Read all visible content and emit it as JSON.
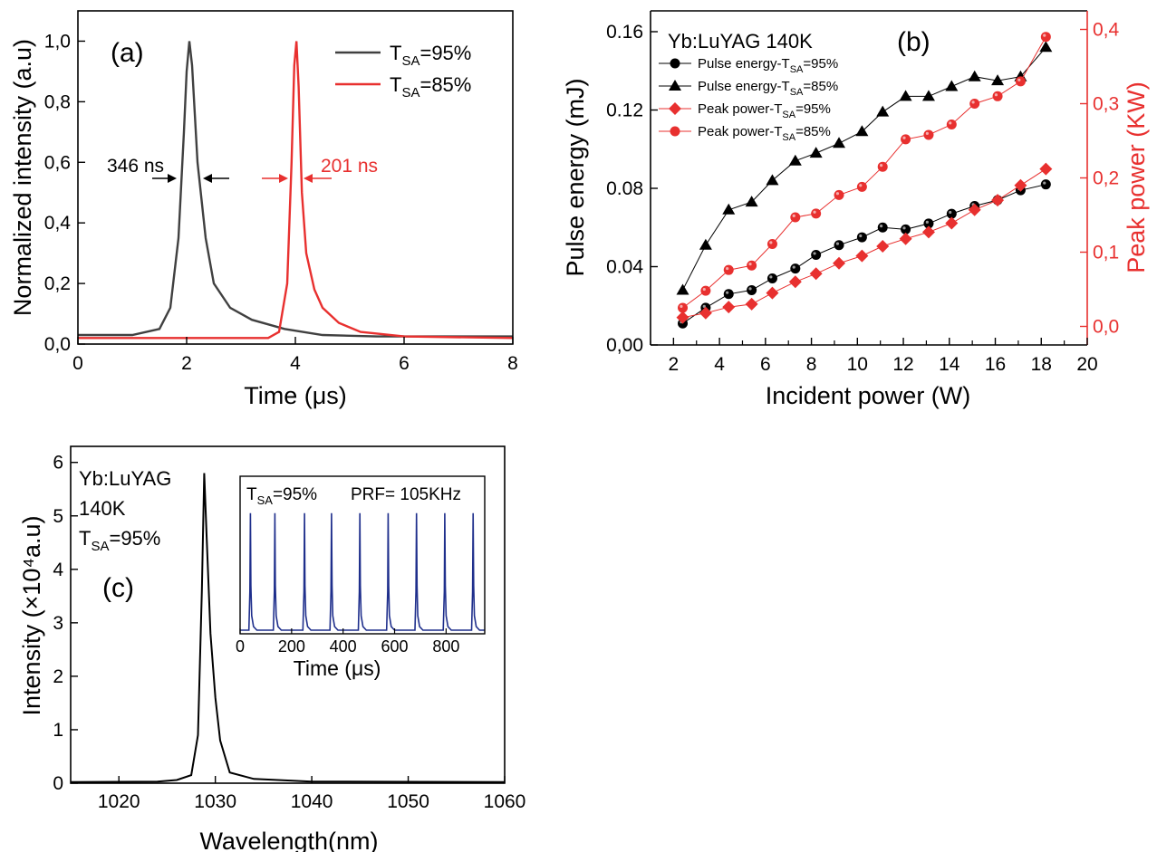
{
  "colors": {
    "black_series": "#000000",
    "gray_series": "#404040",
    "red_series": "#e8302f",
    "blue_series": "#1f2f8c"
  },
  "chart_data": [
    {
      "panel": "(a)",
      "type": "line",
      "xlabel": "Time (μs)",
      "ylabel": "Normalized intensity (a.u)",
      "xlim": [
        0,
        8
      ],
      "ylim": [
        0,
        1.1
      ],
      "x_ticks": [
        "0",
        "2",
        "4",
        "6",
        "8"
      ],
      "y_ticks": [
        "0,0",
        "0,2",
        "0,4",
        "0,6",
        "0,8",
        "1,0"
      ],
      "legend_position": "top-right",
      "series": [
        {
          "name": "T_SA=95%",
          "name_main": "T",
          "name_sub": "SA",
          "name_rest": "=95%",
          "color": "#404040",
          "x": [
            0,
            1.0,
            1.5,
            1.7,
            1.85,
            1.95,
            2.0,
            2.05,
            2.1,
            2.2,
            2.35,
            2.5,
            2.8,
            3.2,
            3.8,
            4.5,
            5.5,
            8.0
          ],
          "y": [
            0.03,
            0.03,
            0.05,
            0.12,
            0.35,
            0.7,
            0.9,
            1.0,
            0.92,
            0.6,
            0.35,
            0.2,
            0.12,
            0.08,
            0.05,
            0.03,
            0.025,
            0.025
          ]
        },
        {
          "name": "T_SA=85%",
          "name_main": "T",
          "name_sub": "SA",
          "name_rest": "=85%",
          "color": "#e8302f",
          "x": [
            0,
            3.5,
            3.7,
            3.85,
            3.93,
            3.98,
            4.02,
            4.06,
            4.12,
            4.2,
            4.35,
            4.5,
            4.8,
            5.2,
            6.0,
            8.0
          ],
          "y": [
            0.02,
            0.02,
            0.04,
            0.2,
            0.6,
            0.92,
            1.0,
            0.85,
            0.5,
            0.3,
            0.18,
            0.12,
            0.07,
            0.04,
            0.025,
            0.02
          ]
        }
      ],
      "annotations": [
        {
          "text": "346 ns",
          "color": "#000000"
        },
        {
          "text": "201 ns",
          "color": "#e8302f"
        }
      ]
    },
    {
      "panel": "(b)",
      "type": "line",
      "xlabel": "Incident power (W)",
      "ylabel": "Pulse energy (mJ)",
      "ylabel_right": "Peak power (KW)",
      "title": "Yb:LuYAG   140K",
      "xlim": [
        1,
        20
      ],
      "ylim": [
        0,
        0.16
      ],
      "ylim_right": [
        -0.025,
        0.425
      ],
      "x_ticks": [
        "2",
        "4",
        "6",
        "8",
        "10",
        "12",
        "14",
        "16",
        "18",
        "20"
      ],
      "y_ticks": [
        "0,00",
        "0.04",
        "0.08",
        "0.12",
        "0.16"
      ],
      "y_ticks_right": [
        "0,0",
        "0,1",
        "0,2",
        "0,3",
        "0,4"
      ],
      "legend_position": "top-left",
      "x": [
        2.4,
        3.4,
        4.4,
        5.4,
        6.3,
        7.3,
        8.2,
        9.2,
        10.2,
        11.1,
        12.1,
        13.1,
        14.1,
        15.1,
        16.1,
        17.1,
        18.2
      ],
      "series": [
        {
          "name": "Pulse energy-T_SA=95%",
          "name_main": "Pulse energy-T",
          "name_sub": "SA",
          "name_rest": "=95%",
          "axis": "left",
          "marker": "circle",
          "color": "#000000",
          "y": [
            0.011,
            0.019,
            0.026,
            0.028,
            0.034,
            0.039,
            0.046,
            0.051,
            0.055,
            0.06,
            0.059,
            0.062,
            0.067,
            0.071,
            0.074,
            0.079,
            0.082
          ]
        },
        {
          "name": "Pulse energy-T_SA=85%",
          "name_main": "Pulse energy-T",
          "name_sub": "SA",
          "name_rest": "=85%",
          "axis": "left",
          "marker": "triangle",
          "color": "#000000",
          "y": [
            0.028,
            0.051,
            0.069,
            0.073,
            0.084,
            0.094,
            0.098,
            0.103,
            0.109,
            0.119,
            0.127,
            0.127,
            0.132,
            0.137,
            0.135,
            0.137,
            0.152
          ]
        },
        {
          "name": "Peak power-T_SA=95%",
          "name_main": "Peak power-T",
          "name_sub": "SA",
          "name_rest": "=95%",
          "axis": "right",
          "marker": "diamond",
          "color": "#e8302f",
          "y": [
            0.012,
            0.018,
            0.026,
            0.03,
            0.045,
            0.06,
            0.071,
            0.085,
            0.095,
            0.108,
            0.118,
            0.127,
            0.139,
            0.157,
            0.17,
            0.19,
            0.212
          ]
        },
        {
          "name": "Peak power-T_SA=85%",
          "name_main": "Peak power-T",
          "name_sub": "SA",
          "name_rest": "=85%",
          "axis": "right",
          "marker": "circle",
          "color": "#e8302f",
          "y": [
            0.025,
            0.048,
            0.076,
            0.082,
            0.111,
            0.147,
            0.152,
            0.177,
            0.188,
            0.215,
            0.252,
            0.258,
            0.272,
            0.3,
            0.31,
            0.33,
            0.39
          ]
        }
      ]
    },
    {
      "panel": "(c)",
      "type": "line",
      "xlabel": "Wavelength(nm)",
      "ylabel": "Intensity (×10⁴a.u)",
      "xlim": [
        1015,
        1060
      ],
      "ylim": [
        0,
        6.3
      ],
      "x_ticks": [
        "1020",
        "1030",
        "1040",
        "1050",
        "1060"
      ],
      "y_ticks": [
        "0",
        "1",
        "2",
        "3",
        "4",
        "5",
        "6"
      ],
      "text_block": [
        "Yb:LuYAG",
        "140K"
      ],
      "text_tsa": {
        "main": "T",
        "sub": "SA",
        "rest": "=95%"
      },
      "series": [
        {
          "color": "#000000",
          "x": [
            1015,
            1024,
            1026,
            1027.5,
            1028.2,
            1028.6,
            1028.85,
            1029.1,
            1029.5,
            1030.0,
            1030.5,
            1031.5,
            1034,
            1040,
            1060
          ],
          "y": [
            0.02,
            0.03,
            0.06,
            0.15,
            0.9,
            3.6,
            5.8,
            4.6,
            2.8,
            1.6,
            0.8,
            0.2,
            0.08,
            0.03,
            0.02
          ]
        }
      ],
      "inset": {
        "type": "line",
        "xlabel": "Time (μs)",
        "xlim": [
          0,
          950
        ],
        "ylim": [
          0,
          1.05
        ],
        "x_ticks": [
          "0",
          "200",
          "400",
          "600",
          "800"
        ],
        "text_left": {
          "main": "T",
          "sub": "SA",
          "rest": "=95%"
        },
        "text_right": "PRF= 105KHz",
        "pulse_times": [
          40,
          135,
          250,
          355,
          465,
          575,
          685,
          795,
          905
        ],
        "pulse_peak": 1.0,
        "color": "#1f2f8c"
      }
    }
  ]
}
